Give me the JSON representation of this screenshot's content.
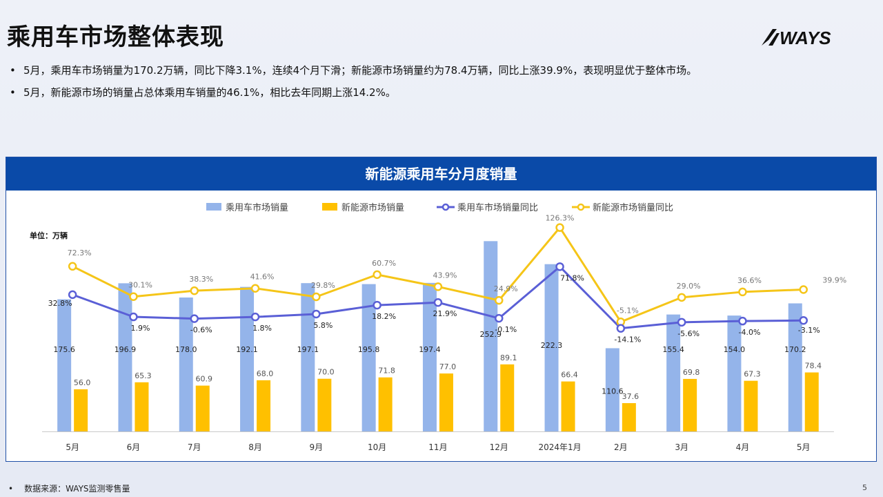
{
  "slide": {
    "title": "乘用车市场整体表现",
    "logo_text": "WAYS",
    "bullets": [
      "5月，乘用车市场销量为170.2万辆，同比下降3.1%，连续4个月下滑；新能源市场销量约为78.4万辆，同比上涨39.9%，表现明显优于整体市场。",
      "5月，新能源市场的销量占总体乘用车销量的46.1%，相比去年同期上涨14.2%。"
    ],
    "source_label": "数据来源：WAYS监测零售量",
    "page_number": "5"
  },
  "chart_data": {
    "type": "bar",
    "title": "新能源乘用车分月度销量",
    "unit_label": "单位：万辆",
    "legend_position": "top",
    "categories": [
      "5月",
      "6月",
      "7月",
      "8月",
      "9月",
      "10月",
      "11月",
      "12月",
      "2024年1月",
      "2月",
      "3月",
      "4月",
      "5月"
    ],
    "series": [
      {
        "name": "乘用车市场销量",
        "type": "bar",
        "color": "#94b4ea",
        "values": [
          175.6,
          196.9,
          178.0,
          192.1,
          197.1,
          195.8,
          197.4,
          252.9,
          222.3,
          110.6,
          155.4,
          154.0,
          170.2
        ]
      },
      {
        "name": "新能源市场销量",
        "type": "bar",
        "color": "#ffc000",
        "values": [
          56.0,
          65.3,
          60.9,
          68.0,
          70.0,
          71.8,
          77.0,
          89.1,
          66.4,
          37.6,
          69.8,
          67.3,
          78.4
        ]
      },
      {
        "name": "乘用车市场销量同比",
        "type": "line",
        "color": "#5a5fd6",
        "values": [
          32.8,
          1.9,
          -0.6,
          1.8,
          5.8,
          18.2,
          21.9,
          -0.1,
          71.8,
          -14.1,
          -5.6,
          -4.0,
          -3.1
        ]
      },
      {
        "name": "新能源市场销量同比",
        "type": "line",
        "color": "#f5c518",
        "values": [
          72.3,
          30.1,
          38.3,
          41.6,
          29.8,
          60.7,
          43.9,
          24.9,
          126.3,
          -5.1,
          29.0,
          36.6,
          39.9
        ]
      }
    ]
  }
}
